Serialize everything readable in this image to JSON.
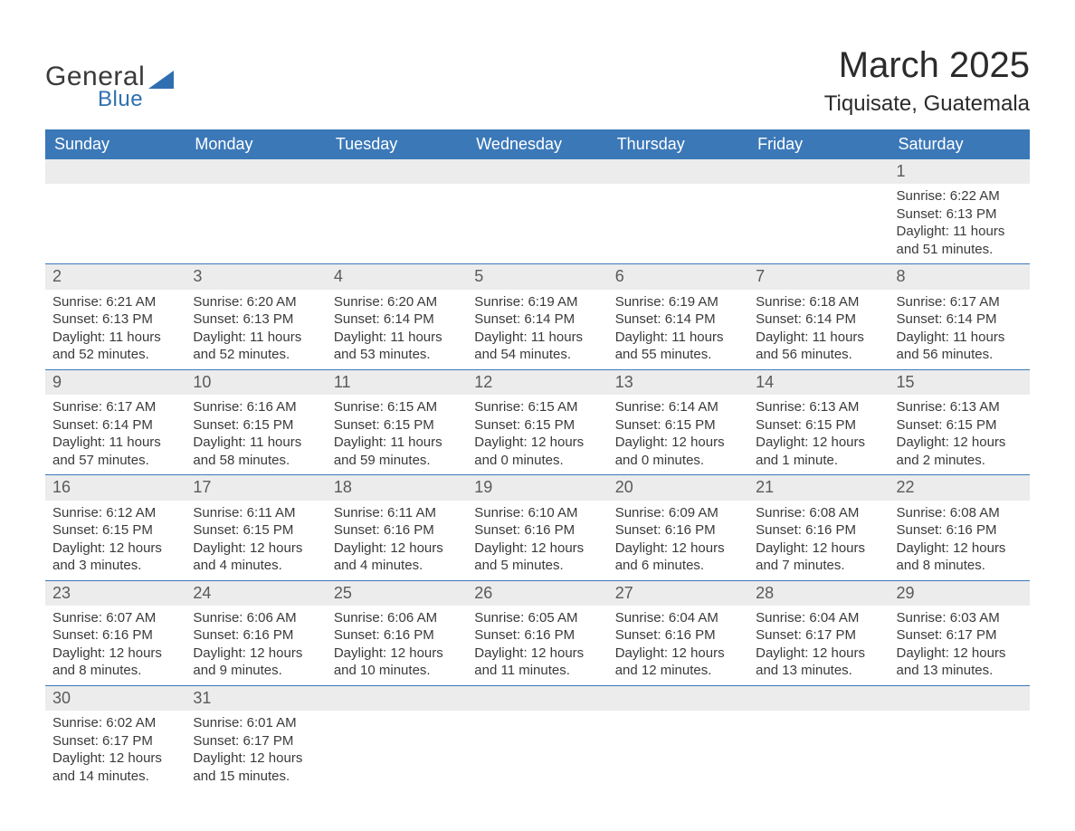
{
  "logo": {
    "text1": "General",
    "text2": "Blue",
    "accent_color": "#2f6fb0"
  },
  "title": {
    "month": "March 2025",
    "location": "Tiquisate, Guatemala"
  },
  "colors": {
    "header_bg": "#3b78b8",
    "header_text": "#ffffff",
    "daynum_bg": "#ececec",
    "daynum_text": "#5a5a5a",
    "body_text": "#3a3a3a",
    "rule": "#3b78b8",
    "page_bg": "#ffffff"
  },
  "typography": {
    "month_fontsize": 40,
    "location_fontsize": 24,
    "header_fontsize": 18,
    "daynum_fontsize": 18,
    "cell_fontsize": 15
  },
  "layout": {
    "columns": 7,
    "leading_blanks": 6,
    "trailing_blanks": 5
  },
  "day_headers": [
    "Sunday",
    "Monday",
    "Tuesday",
    "Wednesday",
    "Thursday",
    "Friday",
    "Saturday"
  ],
  "days": [
    {
      "n": 1,
      "sunrise": "6:22 AM",
      "sunset": "6:13 PM",
      "daylight": "11 hours and 51 minutes."
    },
    {
      "n": 2,
      "sunrise": "6:21 AM",
      "sunset": "6:13 PM",
      "daylight": "11 hours and 52 minutes."
    },
    {
      "n": 3,
      "sunrise": "6:20 AM",
      "sunset": "6:13 PM",
      "daylight": "11 hours and 52 minutes."
    },
    {
      "n": 4,
      "sunrise": "6:20 AM",
      "sunset": "6:14 PM",
      "daylight": "11 hours and 53 minutes."
    },
    {
      "n": 5,
      "sunrise": "6:19 AM",
      "sunset": "6:14 PM",
      "daylight": "11 hours and 54 minutes."
    },
    {
      "n": 6,
      "sunrise": "6:19 AM",
      "sunset": "6:14 PM",
      "daylight": "11 hours and 55 minutes."
    },
    {
      "n": 7,
      "sunrise": "6:18 AM",
      "sunset": "6:14 PM",
      "daylight": "11 hours and 56 minutes."
    },
    {
      "n": 8,
      "sunrise": "6:17 AM",
      "sunset": "6:14 PM",
      "daylight": "11 hours and 56 minutes."
    },
    {
      "n": 9,
      "sunrise": "6:17 AM",
      "sunset": "6:14 PM",
      "daylight": "11 hours and 57 minutes."
    },
    {
      "n": 10,
      "sunrise": "6:16 AM",
      "sunset": "6:15 PM",
      "daylight": "11 hours and 58 minutes."
    },
    {
      "n": 11,
      "sunrise": "6:15 AM",
      "sunset": "6:15 PM",
      "daylight": "11 hours and 59 minutes."
    },
    {
      "n": 12,
      "sunrise": "6:15 AM",
      "sunset": "6:15 PM",
      "daylight": "12 hours and 0 minutes."
    },
    {
      "n": 13,
      "sunrise": "6:14 AM",
      "sunset": "6:15 PM",
      "daylight": "12 hours and 0 minutes."
    },
    {
      "n": 14,
      "sunrise": "6:13 AM",
      "sunset": "6:15 PM",
      "daylight": "12 hours and 1 minute."
    },
    {
      "n": 15,
      "sunrise": "6:13 AM",
      "sunset": "6:15 PM",
      "daylight": "12 hours and 2 minutes."
    },
    {
      "n": 16,
      "sunrise": "6:12 AM",
      "sunset": "6:15 PM",
      "daylight": "12 hours and 3 minutes."
    },
    {
      "n": 17,
      "sunrise": "6:11 AM",
      "sunset": "6:15 PM",
      "daylight": "12 hours and 4 minutes."
    },
    {
      "n": 18,
      "sunrise": "6:11 AM",
      "sunset": "6:16 PM",
      "daylight": "12 hours and 4 minutes."
    },
    {
      "n": 19,
      "sunrise": "6:10 AM",
      "sunset": "6:16 PM",
      "daylight": "12 hours and 5 minutes."
    },
    {
      "n": 20,
      "sunrise": "6:09 AM",
      "sunset": "6:16 PM",
      "daylight": "12 hours and 6 minutes."
    },
    {
      "n": 21,
      "sunrise": "6:08 AM",
      "sunset": "6:16 PM",
      "daylight": "12 hours and 7 minutes."
    },
    {
      "n": 22,
      "sunrise": "6:08 AM",
      "sunset": "6:16 PM",
      "daylight": "12 hours and 8 minutes."
    },
    {
      "n": 23,
      "sunrise": "6:07 AM",
      "sunset": "6:16 PM",
      "daylight": "12 hours and 8 minutes."
    },
    {
      "n": 24,
      "sunrise": "6:06 AM",
      "sunset": "6:16 PM",
      "daylight": "12 hours and 9 minutes."
    },
    {
      "n": 25,
      "sunrise": "6:06 AM",
      "sunset": "6:16 PM",
      "daylight": "12 hours and 10 minutes."
    },
    {
      "n": 26,
      "sunrise": "6:05 AM",
      "sunset": "6:16 PM",
      "daylight": "12 hours and 11 minutes."
    },
    {
      "n": 27,
      "sunrise": "6:04 AM",
      "sunset": "6:16 PM",
      "daylight": "12 hours and 12 minutes."
    },
    {
      "n": 28,
      "sunrise": "6:04 AM",
      "sunset": "6:17 PM",
      "daylight": "12 hours and 13 minutes."
    },
    {
      "n": 29,
      "sunrise": "6:03 AM",
      "sunset": "6:17 PM",
      "daylight": "12 hours and 13 minutes."
    },
    {
      "n": 30,
      "sunrise": "6:02 AM",
      "sunset": "6:17 PM",
      "daylight": "12 hours and 14 minutes."
    },
    {
      "n": 31,
      "sunrise": "6:01 AM",
      "sunset": "6:17 PM",
      "daylight": "12 hours and 15 minutes."
    }
  ],
  "labels": {
    "sunrise": "Sunrise:",
    "sunset": "Sunset:",
    "daylight": "Daylight:"
  }
}
